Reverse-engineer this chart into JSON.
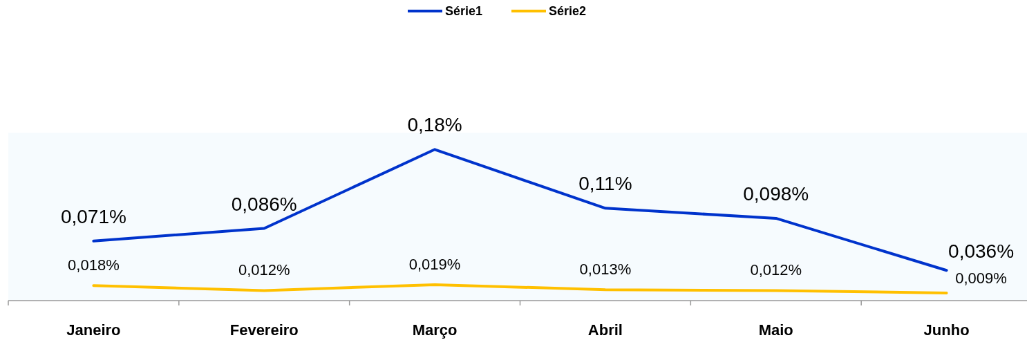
{
  "chart_data": {
    "type": "line",
    "categories": [
      "Janeiro",
      "Fevereiro",
      "Março",
      "Abril",
      "Maio",
      "Junho"
    ],
    "series": [
      {
        "name": "Série1",
        "color": "#0033cc",
        "values": [
          0.071,
          0.086,
          0.18,
          0.11,
          0.098,
          0.036
        ],
        "value_labels": [
          "0,071%",
          "0,086%",
          "0,18%",
          "0,11%",
          "0,098%",
          "0,036%"
        ]
      },
      {
        "name": "Série2",
        "color": "#ffc000",
        "values": [
          0.018,
          0.012,
          0.019,
          0.013,
          0.012,
          0.009
        ],
        "value_labels": [
          "0,018%",
          "0,012%",
          "0,019%",
          "0,013%",
          "0,012%",
          "0,009%"
        ]
      }
    ],
    "ylim": [
      0,
      0.2
    ],
    "tick_labels": "x",
    "legend": "top",
    "marker": "none",
    "line_style": "solid"
  }
}
